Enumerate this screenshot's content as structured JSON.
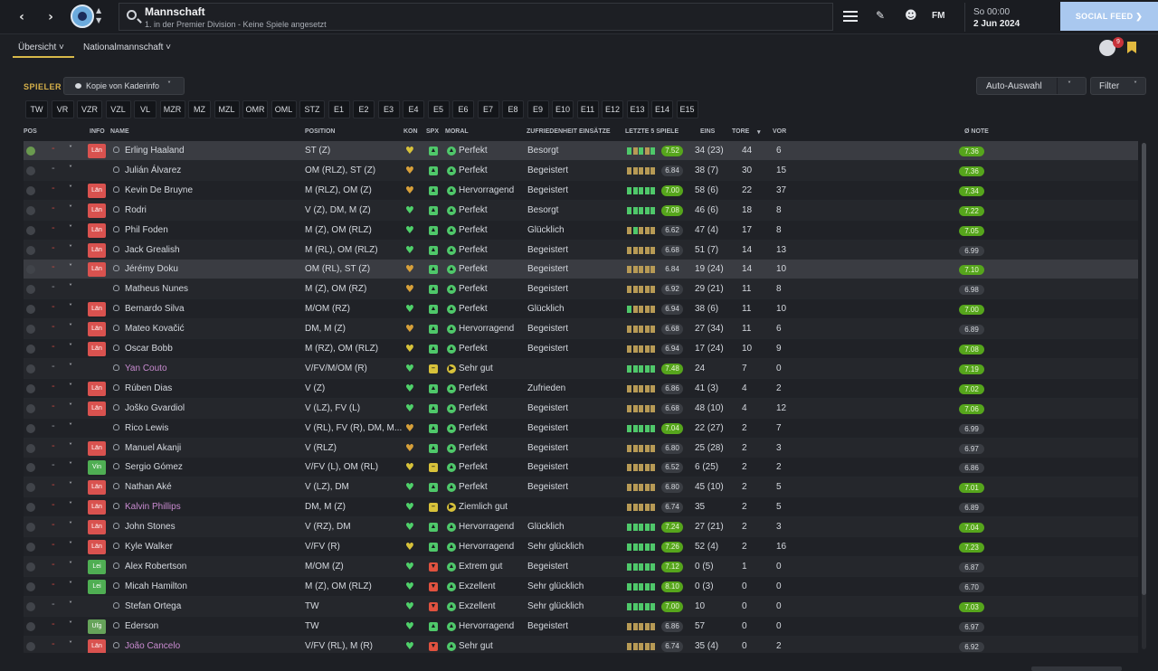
{
  "header": {
    "title": "Mannschaft",
    "subtitle": "1. in der Premier Division - Keine Spiele angesetzt",
    "time": "So 00:00",
    "date": "2 Jun 2024",
    "social_feed": "SOCIAL FEED",
    "fm": "FM",
    "notif_count": "9"
  },
  "tabs": [
    "Übersicht",
    "Nationalmannschaft"
  ],
  "toolbar": {
    "spieler": "SPIELER",
    "view": "Kopie von Kaderinfo",
    "auto": "Auto-Auswahl",
    "filter": "Filter"
  },
  "position_tabs": [
    "TW",
    "VR",
    "VZR",
    "VZL",
    "VL",
    "MZR",
    "MZ",
    "MZL",
    "OMR",
    "OML",
    "STZ",
    "E1",
    "E2",
    "E3",
    "E4",
    "E5",
    "E6",
    "E7",
    "E8",
    "E9",
    "E10",
    "E11",
    "E12",
    "E13",
    "E14",
    "E15"
  ],
  "columns": {
    "pos": "POS",
    "info": "INFO",
    "name": "NAME",
    "position": "POSITION",
    "kon": "KON",
    "spx": "SPX",
    "moral": "MORAL",
    "zuf": "ZUFRIEDENHEIT EINSÄTZE",
    "letzte": "LETZTE 5 SPIELE",
    "eins": "EINS",
    "tore": "TORE",
    "vor": "VOR",
    "note": "Ø NOTE"
  },
  "colors": {
    "accent": "#d8b24a",
    "good": "#56a51c",
    "loan_name": "#c98bd0",
    "badge_red": "#d9524f",
    "badge_green": "#4fae53"
  },
  "players": [
    {
      "name": "Erling Haaland",
      "info": "Län",
      "position": "ST (Z)",
      "heart": "y",
      "spx": "g",
      "mi": "g",
      "moral": "Perfekt",
      "zuf": "Besorgt",
      "form": [
        1,
        0,
        1,
        0,
        1
      ],
      "rate": "7.52",
      "rg": true,
      "eins": "34 (23)",
      "tore": "44",
      "vor": "6",
      "note": "7.36",
      "ng": true,
      "loan": false,
      "dash": false,
      "chk": true
    },
    {
      "name": "Julián Álvarez",
      "info": "",
      "position": "OM (RLZ), ST (Z)",
      "heart": "o",
      "spx": "g",
      "mi": "g",
      "moral": "Perfekt",
      "zuf": "Begeistert",
      "form": [
        0,
        0,
        0,
        0,
        0
      ],
      "rate": "6.84",
      "rg": false,
      "eins": "38 (7)",
      "tore": "30",
      "vor": "15",
      "note": "7.36",
      "ng": true,
      "loan": false,
      "dash": true,
      "chk": false
    },
    {
      "name": "Kevin De Bruyne",
      "info": "Län",
      "position": "M (RLZ), OM (Z)",
      "heart": "o",
      "spx": "g",
      "mi": "g",
      "moral": "Hervorragend",
      "zuf": "Begeistert",
      "form": [
        1,
        1,
        1,
        1,
        1
      ],
      "rate": "7.00",
      "rg": true,
      "eins": "58 (6)",
      "tore": "22",
      "vor": "37",
      "note": "7.34",
      "ng": true,
      "loan": false,
      "dash": false,
      "chk": false
    },
    {
      "name": "Rodri",
      "info": "Län",
      "position": "V (Z), DM, M (Z)",
      "heart": "g",
      "spx": "g",
      "mi": "g",
      "moral": "Perfekt",
      "zuf": "Besorgt",
      "form": [
        1,
        1,
        1,
        1,
        1
      ],
      "rate": "7.08",
      "rg": true,
      "eins": "46 (6)",
      "tore": "18",
      "vor": "8",
      "note": "7.22",
      "ng": true,
      "loan": false,
      "dash": false,
      "chk": false
    },
    {
      "name": "Phil Foden",
      "info": "Län",
      "position": "M (Z), OM (RLZ)",
      "heart": "g",
      "spx": "g",
      "mi": "g",
      "moral": "Perfekt",
      "zuf": "Glücklich",
      "form": [
        0,
        1,
        0,
        0,
        0
      ],
      "rate": "6.62",
      "rg": false,
      "eins": "47 (4)",
      "tore": "17",
      "vor": "8",
      "note": "7.05",
      "ng": true,
      "loan": false,
      "dash": false,
      "chk": false
    },
    {
      "name": "Jack Grealish",
      "info": "Län",
      "position": "M (RL), OM (RLZ)",
      "heart": "g",
      "spx": "g",
      "mi": "g",
      "moral": "Perfekt",
      "zuf": "Begeistert",
      "form": [
        0,
        0,
        0,
        0,
        0
      ],
      "rate": "6.68",
      "rg": false,
      "eins": "51 (7)",
      "tore": "14",
      "vor": "13",
      "note": "6.99",
      "ng": false,
      "loan": false,
      "dash": false,
      "chk": false
    },
    {
      "name": "Jérémy Doku",
      "info": "Län",
      "position": "OM (RL), ST (Z)",
      "heart": "o",
      "spx": "g",
      "mi": "g",
      "moral": "Perfekt",
      "zuf": "Begeistert",
      "form": [
        0,
        0,
        0,
        0,
        0
      ],
      "rate": "6.84",
      "rg": false,
      "eins": "19 (24)",
      "tore": "14",
      "vor": "10",
      "note": "7.10",
      "ng": true,
      "loan": false,
      "dash": false,
      "chk": false
    },
    {
      "name": "Matheus Nunes",
      "info": "",
      "position": "M (Z), OM (RZ)",
      "heart": "o",
      "spx": "g",
      "mi": "g",
      "moral": "Perfekt",
      "zuf": "Begeistert",
      "form": [
        0,
        0,
        0,
        0,
        0
      ],
      "rate": "6.92",
      "rg": false,
      "eins": "29 (21)",
      "tore": "11",
      "vor": "8",
      "note": "6.98",
      "ng": false,
      "loan": false,
      "dash": true,
      "chk": false
    },
    {
      "name": "Bernardo Silva",
      "info": "Län",
      "position": "M/OM (RZ)",
      "heart": "g",
      "spx": "g",
      "mi": "g",
      "moral": "Perfekt",
      "zuf": "Glücklich",
      "form": [
        1,
        0,
        0,
        0,
        0
      ],
      "rate": "6.94",
      "rg": false,
      "eins": "38 (6)",
      "tore": "11",
      "vor": "10",
      "note": "7.00",
      "ng": true,
      "loan": false,
      "dash": false,
      "chk": false
    },
    {
      "name": "Mateo Kovačić",
      "info": "Län",
      "position": "DM, M (Z)",
      "heart": "o",
      "spx": "g",
      "mi": "g",
      "moral": "Hervorragend",
      "zuf": "Begeistert",
      "form": [
        0,
        0,
        0,
        0,
        0
      ],
      "rate": "6.68",
      "rg": false,
      "eins": "27 (34)",
      "tore": "11",
      "vor": "6",
      "note": "6.89",
      "ng": false,
      "loan": false,
      "dash": false,
      "chk": false
    },
    {
      "name": "Oscar Bobb",
      "info": "Län",
      "position": "M (RZ), OM (RLZ)",
      "heart": "y",
      "spx": "g",
      "mi": "g",
      "moral": "Perfekt",
      "zuf": "Begeistert",
      "form": [
        0,
        0,
        0,
        0,
        0
      ],
      "rate": "6.94",
      "rg": false,
      "eins": "17 (24)",
      "tore": "10",
      "vor": "9",
      "note": "7.08",
      "ng": true,
      "loan": false,
      "dash": false,
      "chk": false
    },
    {
      "name": "Yan Couto",
      "info": "",
      "position": "V/FV/M/OM (R)",
      "heart": "g",
      "spx": "y",
      "mi": "y",
      "moral": "Sehr gut",
      "zuf": "",
      "form": [
        1,
        1,
        1,
        1,
        1
      ],
      "rate": "7.48",
      "rg": true,
      "eins": "24",
      "tore": "7",
      "vor": "0",
      "note": "7.19",
      "ng": true,
      "loan": true,
      "dash": true,
      "chk": false
    },
    {
      "name": "Rúben Dias",
      "info": "Län",
      "position": "V (Z)",
      "heart": "g",
      "spx": "g",
      "mi": "g",
      "moral": "Perfekt",
      "zuf": "Zufrieden",
      "form": [
        0,
        0,
        0,
        0,
        0
      ],
      "rate": "6.86",
      "rg": false,
      "eins": "41 (3)",
      "tore": "4",
      "vor": "2",
      "note": "7.02",
      "ng": true,
      "loan": false,
      "dash": false,
      "chk": false
    },
    {
      "name": "Joško Gvardiol",
      "info": "Län",
      "position": "V (LZ), FV (L)",
      "heart": "g",
      "spx": "g",
      "mi": "g",
      "moral": "Perfekt",
      "zuf": "Begeistert",
      "form": [
        0,
        0,
        0,
        0,
        0
      ],
      "rate": "6.68",
      "rg": false,
      "eins": "48 (10)",
      "tore": "4",
      "vor": "12",
      "note": "7.06",
      "ng": true,
      "loan": false,
      "dash": false,
      "chk": false
    },
    {
      "name": "Rico Lewis",
      "info": "",
      "position": "V (RL), FV (R), DM, M...",
      "heart": "o",
      "spx": "g",
      "mi": "g",
      "moral": "Perfekt",
      "zuf": "Begeistert",
      "form": [
        1,
        1,
        1,
        1,
        1
      ],
      "rate": "7.04",
      "rg": true,
      "eins": "22 (27)",
      "tore": "2",
      "vor": "7",
      "note": "6.99",
      "ng": false,
      "loan": false,
      "dash": true,
      "chk": false
    },
    {
      "name": "Manuel Akanji",
      "info": "Län",
      "position": "V (RLZ)",
      "heart": "o",
      "spx": "g",
      "mi": "g",
      "moral": "Perfekt",
      "zuf": "Begeistert",
      "form": [
        0,
        0,
        0,
        0,
        0
      ],
      "rate": "6.80",
      "rg": false,
      "eins": "25 (28)",
      "tore": "2",
      "vor": "3",
      "note": "6.97",
      "ng": false,
      "loan": false,
      "dash": false,
      "chk": false
    },
    {
      "name": "Sergio Gómez",
      "info": "Vin",
      "position": "V/FV (L), OM (RL)",
      "heart": "y",
      "spx": "y",
      "mi": "g",
      "moral": "Perfekt",
      "zuf": "Begeistert",
      "form": [
        0,
        0,
        0,
        0,
        0
      ],
      "rate": "6.52",
      "rg": false,
      "eins": "6 (25)",
      "tore": "2",
      "vor": "2",
      "note": "6.86",
      "ng": false,
      "loan": false,
      "dash": true,
      "chk": false
    },
    {
      "name": "Nathan Aké",
      "info": "Län",
      "position": "V (LZ), DM",
      "heart": "g",
      "spx": "g",
      "mi": "g",
      "moral": "Perfekt",
      "zuf": "Begeistert",
      "form": [
        0,
        0,
        0,
        0,
        0
      ],
      "rate": "6.80",
      "rg": false,
      "eins": "45 (10)",
      "tore": "2",
      "vor": "5",
      "note": "7.01",
      "ng": true,
      "loan": false,
      "dash": false,
      "chk": false
    },
    {
      "name": "Kalvin Phillips",
      "info": "Län",
      "position": "DM, M (Z)",
      "heart": "g",
      "spx": "y",
      "mi": "y",
      "moral": "Ziemlich gut",
      "zuf": "",
      "form": [
        0,
        0,
        0,
        0,
        0
      ],
      "rate": "6.74",
      "rg": false,
      "eins": "35",
      "tore": "2",
      "vor": "5",
      "note": "6.89",
      "ng": false,
      "loan": true,
      "dash": false,
      "chk": false
    },
    {
      "name": "John Stones",
      "info": "Län",
      "position": "V (RZ), DM",
      "heart": "g",
      "spx": "g",
      "mi": "g",
      "moral": "Hervorragend",
      "zuf": "Glücklich",
      "form": [
        1,
        1,
        1,
        1,
        1
      ],
      "rate": "7.24",
      "rg": true,
      "eins": "27 (21)",
      "tore": "2",
      "vor": "3",
      "note": "7.04",
      "ng": true,
      "loan": false,
      "dash": false,
      "chk": false
    },
    {
      "name": "Kyle Walker",
      "info": "Län",
      "position": "V/FV (R)",
      "heart": "y",
      "spx": "g",
      "mi": "g",
      "moral": "Hervorragend",
      "zuf": "Sehr glücklich",
      "form": [
        1,
        1,
        1,
        1,
        1
      ],
      "rate": "7.26",
      "rg": true,
      "eins": "52 (4)",
      "tore": "2",
      "vor": "16",
      "note": "7.23",
      "ng": true,
      "loan": false,
      "dash": false,
      "chk": false
    },
    {
      "name": "Alex Robertson",
      "info": "Lei",
      "position": "M/OM (Z)",
      "heart": "g",
      "spx": "r",
      "mi": "g",
      "moral": "Extrem gut",
      "zuf": "Begeistert",
      "form": [
        1,
        1,
        1,
        1,
        1
      ],
      "rate": "7.12",
      "rg": true,
      "eins": "0 (5)",
      "tore": "1",
      "vor": "0",
      "note": "6.87",
      "ng": false,
      "loan": false,
      "dash": false,
      "chk": false
    },
    {
      "name": "Micah Hamilton",
      "info": "Lei",
      "position": "M (Z), OM (RLZ)",
      "heart": "g",
      "spx": "r",
      "mi": "g",
      "moral": "Exzellent",
      "zuf": "Sehr glücklich",
      "form": [
        1,
        1,
        1,
        1,
        1
      ],
      "rate": "8.10",
      "rg": true,
      "eins": "0 (3)",
      "tore": "0",
      "vor": "0",
      "note": "6.70",
      "ng": false,
      "loan": false,
      "dash": false,
      "chk": false
    },
    {
      "name": "Stefan Ortega",
      "info": "",
      "position": "TW",
      "heart": "g",
      "spx": "r",
      "mi": "g",
      "moral": "Exzellent",
      "zuf": "Sehr glücklich",
      "form": [
        1,
        1,
        1,
        1,
        1
      ],
      "rate": "7.00",
      "rg": true,
      "eins": "10",
      "tore": "0",
      "vor": "0",
      "note": "7.03",
      "ng": true,
      "loan": false,
      "dash": true,
      "chk": false
    },
    {
      "name": "Ederson",
      "info": "Ufg",
      "position": "TW",
      "heart": "g",
      "spx": "g",
      "mi": "g",
      "moral": "Hervorragend",
      "zuf": "Begeistert",
      "form": [
        0,
        0,
        0,
        0,
        0
      ],
      "rate": "6.86",
      "rg": false,
      "eins": "57",
      "tore": "0",
      "vor": "0",
      "note": "6.97",
      "ng": false,
      "loan": false,
      "dash": false,
      "chk": false
    },
    {
      "name": "João Cancelo",
      "info": "Län",
      "position": "V/FV (RL), M (R)",
      "heart": "g",
      "spx": "r",
      "mi": "g",
      "moral": "Sehr gut",
      "zuf": "",
      "form": [
        0,
        0,
        0,
        0,
        0
      ],
      "rate": "6.74",
      "rg": false,
      "eins": "35 (4)",
      "tore": "0",
      "vor": "2",
      "note": "6.92",
      "ng": false,
      "loan": true,
      "dash": false,
      "chk": false
    }
  ]
}
